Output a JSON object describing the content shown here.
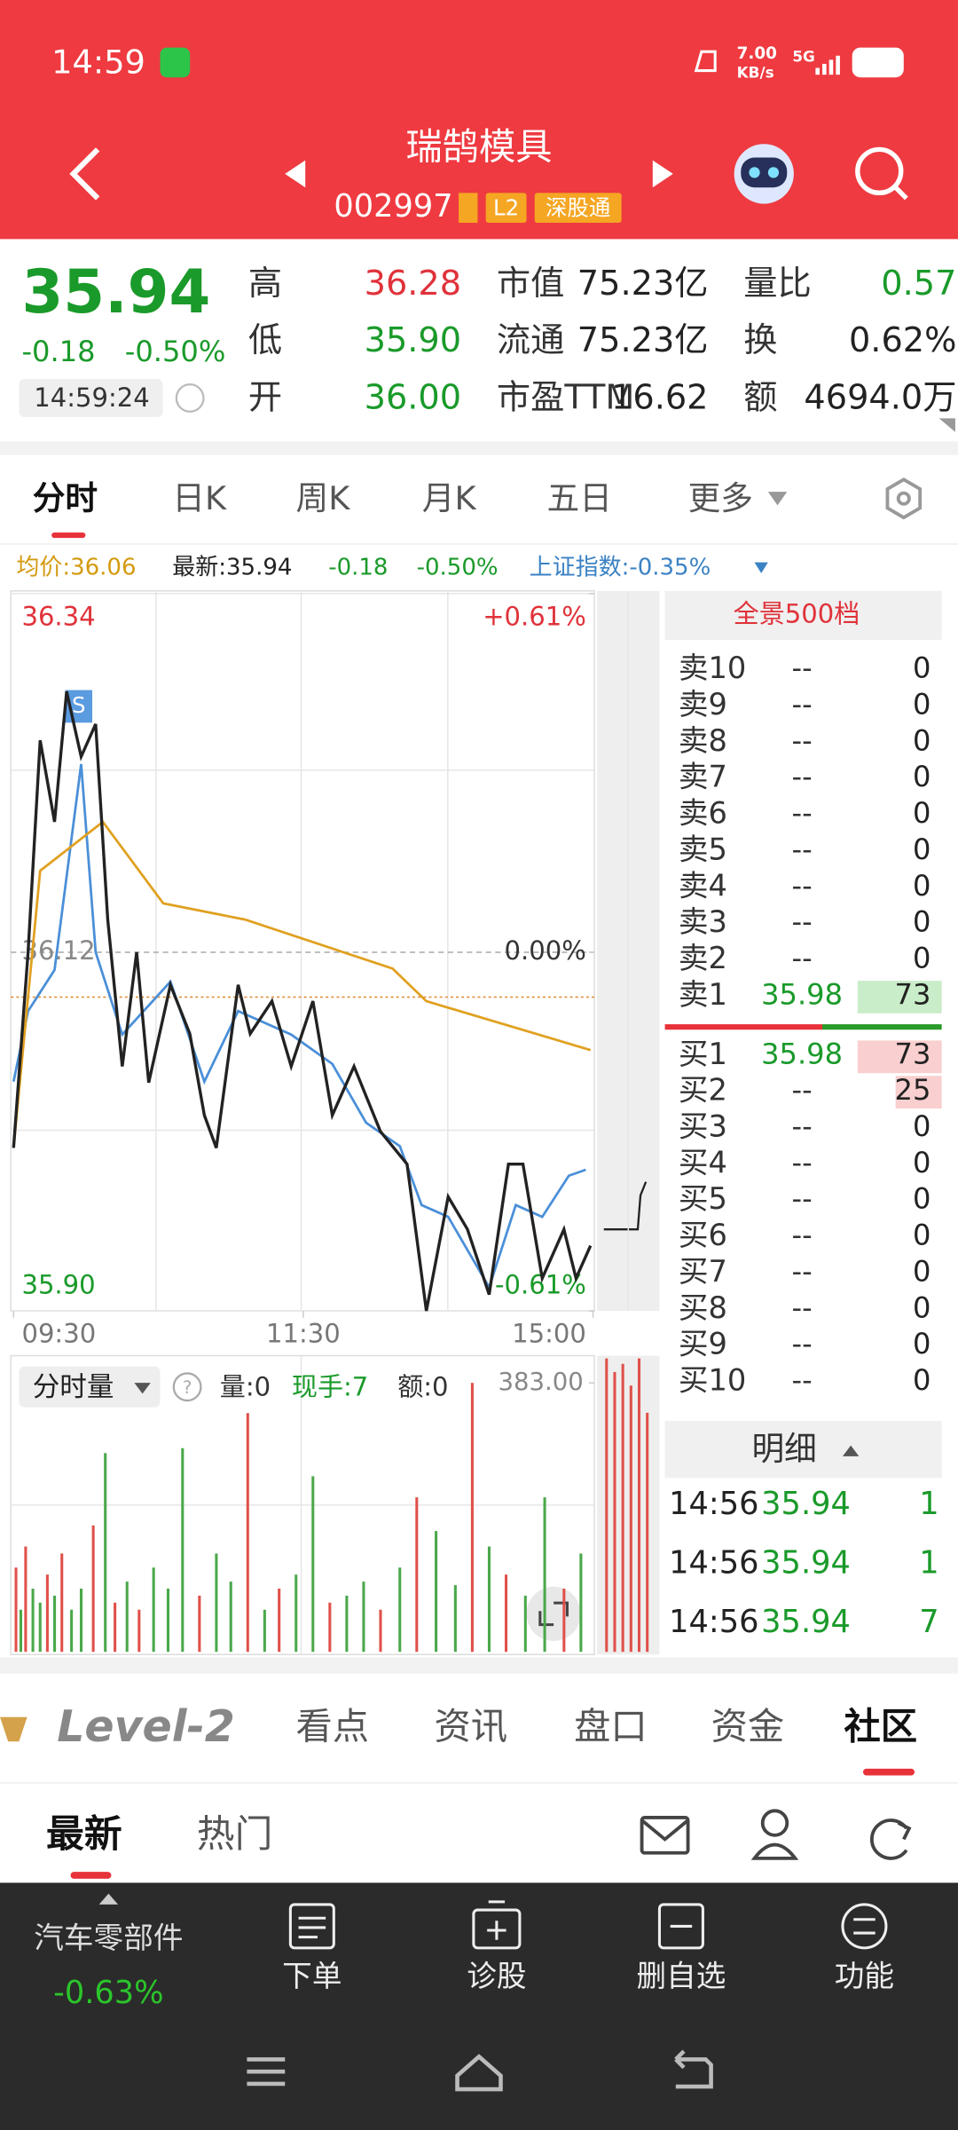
{
  "status_bar": {
    "time": "14:59",
    "net_speed": "7.00",
    "net_unit": "KB/s",
    "network": "5G"
  },
  "header": {
    "title": "瑞鹄模具",
    "code": "002997",
    "badges": [
      "L2",
      "深股通"
    ]
  },
  "quote": {
    "price": "35.94",
    "change": "-0.18",
    "change_pct": "-0.50%",
    "time": "14:59:24",
    "fields": [
      {
        "label": "高",
        "value": "36.28"
      },
      {
        "label": "低",
        "value": "35.90"
      },
      {
        "label": "开",
        "value": "36.00"
      },
      {
        "label": "市值",
        "value": "75.23亿"
      },
      {
        "label": "流通",
        "value": "75.23亿"
      },
      {
        "label": "市盈TTM",
        "value": "16.62"
      },
      {
        "label": "量比",
        "value": "0.57"
      },
      {
        "label": "换",
        "value": "0.62%"
      },
      {
        "label": "额",
        "value": "4694.0万"
      }
    ]
  },
  "tabs": [
    "分时",
    "日K",
    "周K",
    "月K",
    "五日",
    "更多"
  ],
  "info_line": {
    "avg": "均价:36.06",
    "latest": "最新:35.94",
    "change": "-0.18",
    "change_pct": "-0.50%",
    "index": "上证指数:-0.35%"
  },
  "chart": {
    "type": "line",
    "marker": "S",
    "xlim": [
      0,
      240
    ],
    "xticks": [
      {
        "value": 0,
        "label": "09:30"
      },
      {
        "value": 120,
        "label": "11:30"
      },
      {
        "value": 240,
        "label": "15:00"
      }
    ],
    "ylim": [
      35.9,
      36.34
    ],
    "yticks": [
      {
        "value": 35.9,
        "label": "35.90"
      },
      36.12,
      36.34
    ],
    "y2lim": [
      -0.61,
      0.61
    ],
    "y2ticks": [
      {
        "value": -0.61,
        "label": "-0.61%"
      },
      {
        "value": 0,
        "label": "0.00%"
      },
      {
        "value": 0.61,
        "label": "+0.61%"
      }
    ],
    "series": [
      {
        "color": "#222222",
        "x": [
          0,
          6,
          11,
          17,
          22,
          28,
          34,
          39,
          45,
          51,
          56,
          65,
          73,
          79,
          84,
          93,
          98,
          107,
          115,
          124,
          132,
          141,
          152,
          163,
          171,
          180,
          188,
          197,
          205,
          211,
          219,
          228,
          233,
          239
        ],
        "values": [
          36.0,
          36.12,
          36.25,
          36.2,
          36.28,
          36.24,
          36.26,
          36.14,
          36.05,
          36.12,
          36.04,
          36.1,
          36.07,
          36.02,
          36.0,
          36.1,
          36.07,
          36.09,
          36.05,
          36.09,
          36.02,
          36.05,
          36.01,
          35.99,
          35.9,
          35.97,
          35.95,
          35.91,
          35.99,
          35.99,
          35.92,
          35.95,
          35.92,
          35.94
        ]
      },
      {
        "color": "#e0a020",
        "x": [
          0,
          11,
          37,
          62,
          96,
          157,
          171,
          239
        ],
        "values": [
          36.0,
          36.17,
          36.2,
          36.15,
          36.14,
          36.11,
          36.09,
          36.06
        ]
      },
      {
        "color": "#4a8fd8",
        "axis": "y2",
        "x": [
          0,
          6,
          17,
          28,
          34,
          45,
          65,
          79,
          93,
          115,
          132,
          146,
          160,
          169,
          180,
          197,
          208,
          219,
          230,
          237
        ],
        "values": [
          -0.22,
          -0.1,
          -0.03,
          0.32,
          0.0,
          -0.14,
          -0.05,
          -0.22,
          -0.1,
          -0.14,
          -0.19,
          -0.29,
          -0.33,
          -0.43,
          -0.45,
          -0.57,
          -0.43,
          -0.45,
          -0.38,
          -0.37
        ]
      }
    ]
  },
  "volume_panel": {
    "label": "分时量",
    "vol": "量:0",
    "hand": "现手:7",
    "amount": "额:0",
    "ylim": [
      0,
      383
    ],
    "yticks": [
      {
        "value": 383,
        "label": "383.00"
      }
    ],
    "up_color": "#e0504a",
    "down_color": "#4aa84a",
    "x": [
      1,
      3,
      5,
      8,
      11,
      14,
      17,
      20,
      24,
      28,
      33,
      38,
      42,
      47,
      52,
      58,
      64,
      70,
      77,
      84,
      90,
      97,
      104,
      110,
      117,
      124,
      131,
      138,
      145,
      152,
      160,
      167,
      175,
      183,
      190,
      197,
      204,
      212,
      220,
      228,
      235
    ],
    "values": [
      120,
      60,
      150,
      90,
      70,
      110,
      80,
      140,
      60,
      90,
      180,
      283,
      70,
      100,
      60,
      120,
      90,
      290,
      80,
      140,
      100,
      340,
      60,
      90,
      110,
      250,
      70,
      80,
      100,
      60,
      120,
      220,
      172,
      95,
      383,
      150,
      110,
      80,
      220,
      90,
      140
    ],
    "up": [
      true,
      false,
      true,
      false,
      false,
      true,
      false,
      true,
      false,
      false,
      true,
      false,
      true,
      false,
      true,
      false,
      false,
      false,
      true,
      false,
      false,
      true,
      false,
      true,
      false,
      false,
      true,
      false,
      false,
      true,
      false,
      true,
      false,
      false,
      true,
      false,
      true,
      false,
      false,
      true,
      false
    ]
  },
  "order_book": {
    "title": "全景500档",
    "asks": [
      {
        "label": "卖10",
        "price": "--",
        "volume": "0"
      },
      {
        "label": "卖9",
        "price": "--",
        "volume": "0"
      },
      {
        "label": "卖8",
        "price": "--",
        "volume": "0"
      },
      {
        "label": "卖7",
        "price": "--",
        "volume": "0"
      },
      {
        "label": "卖6",
        "price": "--",
        "volume": "0"
      },
      {
        "label": "卖5",
        "price": "--",
        "volume": "0"
      },
      {
        "label": "卖4",
        "price": "--",
        "volume": "0"
      },
      {
        "label": "卖3",
        "price": "--",
        "volume": "0"
      },
      {
        "label": "卖2",
        "price": "--",
        "volume": "0"
      },
      {
        "label": "卖1",
        "price": "35.98",
        "volume": "73"
      }
    ],
    "bids": [
      {
        "label": "买1",
        "price": "35.98",
        "volume": "73"
      },
      {
        "label": "买2",
        "price": "--",
        "volume": "25"
      },
      {
        "label": "买3",
        "price": "--",
        "volume": "0"
      },
      {
        "label": "买4",
        "price": "--",
        "volume": "0"
      },
      {
        "label": "买5",
        "price": "--",
        "volume": "0"
      },
      {
        "label": "买6",
        "price": "--",
        "volume": "0"
      },
      {
        "label": "买7",
        "price": "--",
        "volume": "0"
      },
      {
        "label": "买8",
        "price": "--",
        "volume": "0"
      },
      {
        "label": "买9",
        "price": "--",
        "volume": "0"
      },
      {
        "label": "买10",
        "price": "--",
        "volume": "0"
      }
    ]
  },
  "detail": {
    "title": "明细",
    "rows": [
      {
        "time": "14:56",
        "price": "35.94",
        "volume": "1"
      },
      {
        "time": "14:56",
        "price": "35.94",
        "volume": "1"
      },
      {
        "time": "14:56",
        "price": "35.94",
        "volume": "7"
      }
    ]
  },
  "content_tabs": [
    "Level-2",
    "看点",
    "资讯",
    "盘口",
    "资金",
    "社区"
  ],
  "sub_tabs": [
    "最新",
    "热门"
  ],
  "bottom_bar": {
    "sector": "汽车零部件",
    "sector_change": "-0.63%",
    "items": [
      "下单",
      "诊股",
      "删自选",
      "功能"
    ]
  }
}
